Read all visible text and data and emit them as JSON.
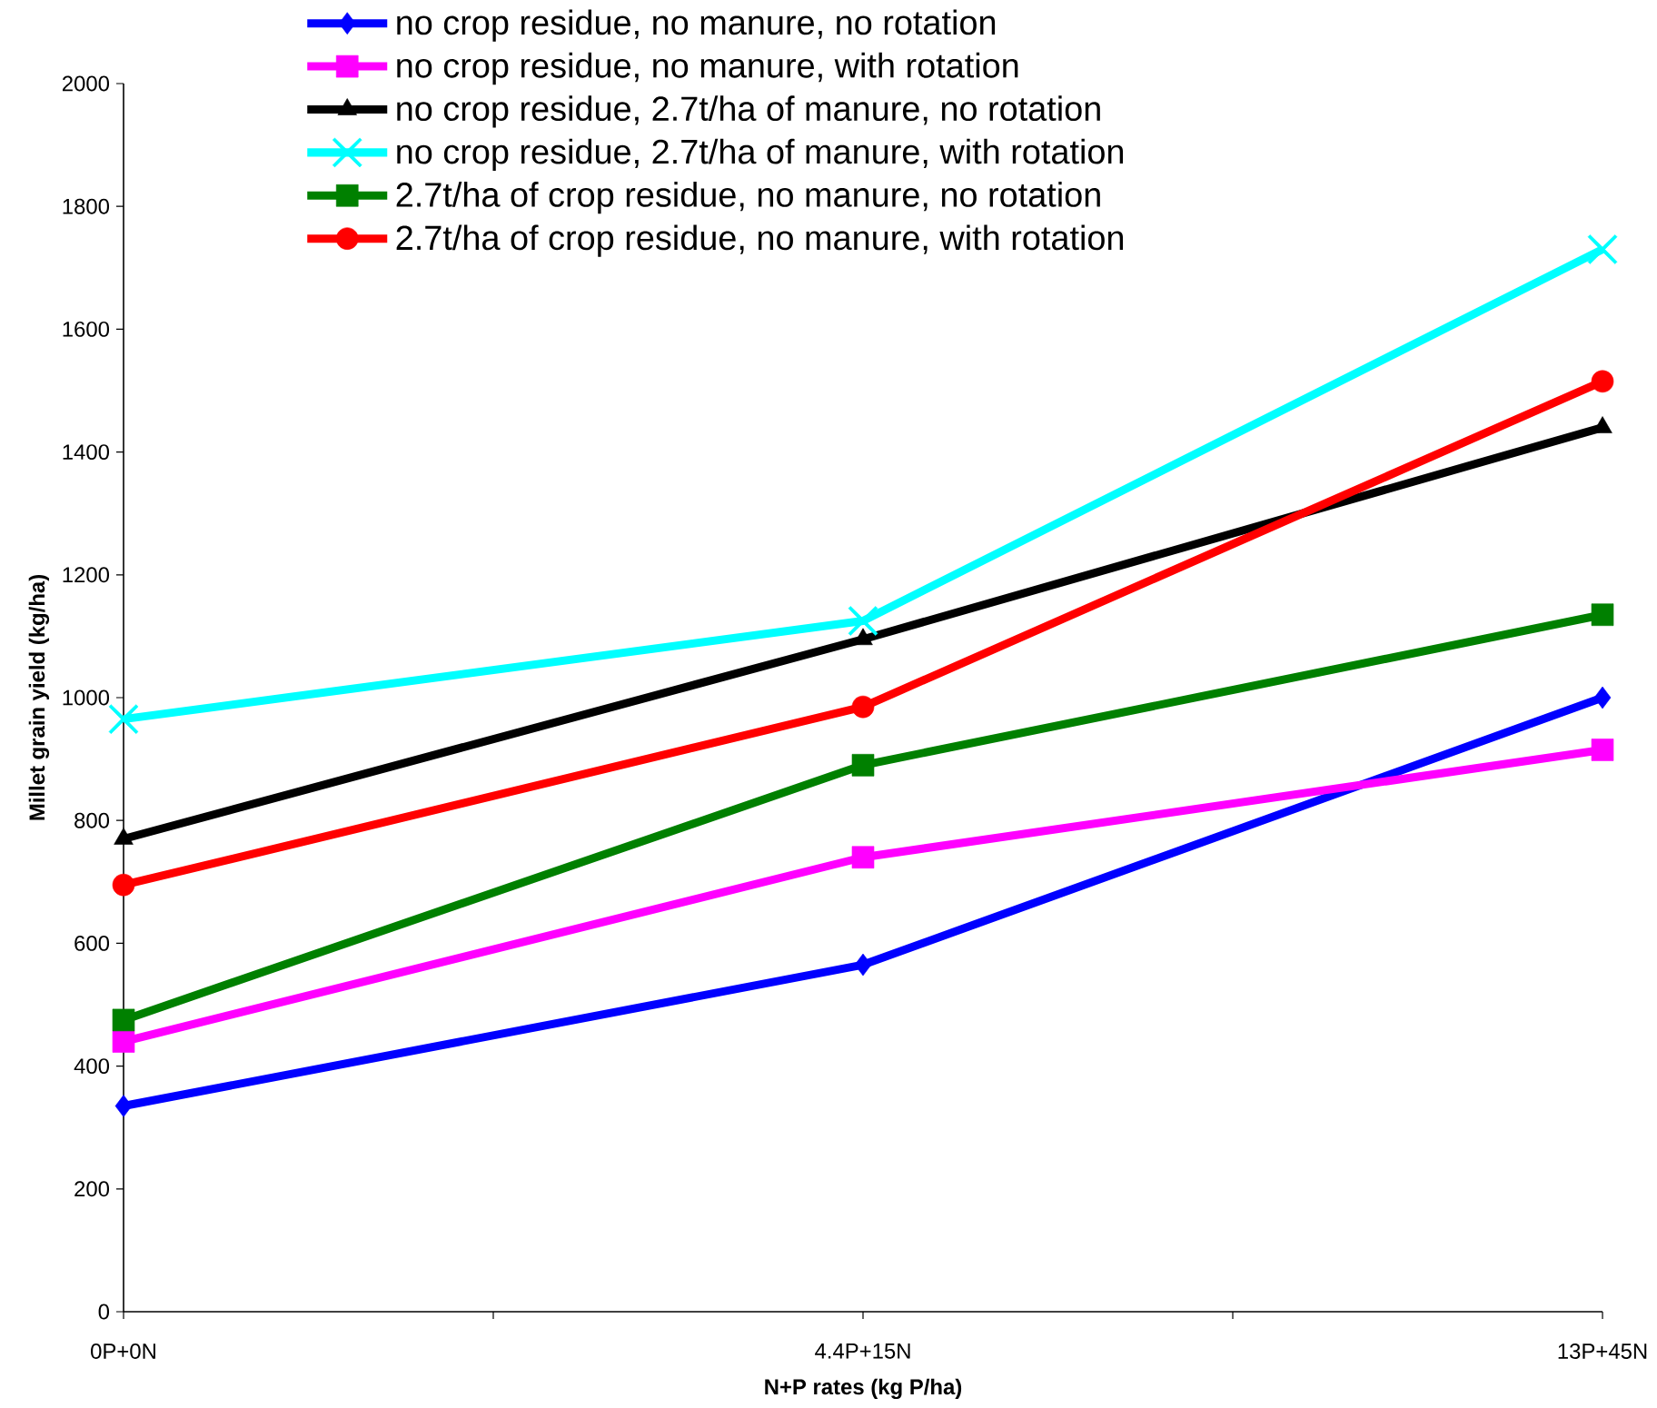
{
  "chart_data": {
    "type": "line",
    "xlabel": "N+P rates (kg P/ha)",
    "ylabel": "Millet grain yield (kg/ha)",
    "categories": [
      "0P+0N",
      "4.4P+15N",
      "13P+45N"
    ],
    "ylim": [
      0,
      2000
    ],
    "yticks": [
      0,
      200,
      400,
      600,
      800,
      1000,
      1200,
      1400,
      1600,
      1800,
      2000
    ],
    "legend": "top",
    "line_style": "solid",
    "series": [
      {
        "name": "no crop residue, no manure, no rotation",
        "color": "#0000ff",
        "marker": "diamond",
        "values": [
          335,
          565,
          1000
        ]
      },
      {
        "name": "no crop residue, no manure, with rotation",
        "color": "#ff00ff",
        "marker": "square",
        "values": [
          440,
          740,
          915
        ]
      },
      {
        "name": "no crop residue, 2.7t/ha of manure, no rotation",
        "color": "#000000",
        "marker": "triangle",
        "values": [
          770,
          1095,
          1440
        ]
      },
      {
        "name": "no crop residue, 2.7t/ha of manure, with rotation",
        "color": "#00ffff",
        "marker": "cross",
        "values": [
          965,
          1125,
          1730
        ]
      },
      {
        "name": "2.7t/ha of  crop residue, no manure, no rotation",
        "color": "#008000",
        "marker": "square",
        "values": [
          475,
          890,
          1135
        ]
      },
      {
        "name": "2.7t/ha of  crop residue, no manure, with rotation",
        "color": "#ff0000",
        "marker": "circle",
        "values": [
          695,
          985,
          1515
        ]
      }
    ]
  }
}
